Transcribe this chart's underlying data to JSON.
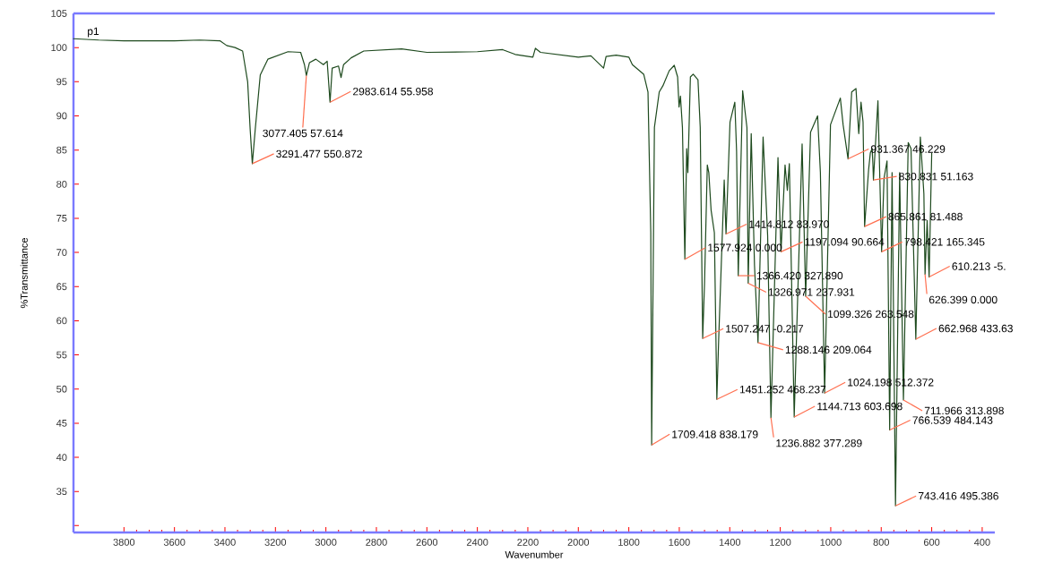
{
  "chart_data": {
    "type": "line",
    "title": "p1",
    "xlabel": "Wavenumber",
    "ylabel": "%Transmittance",
    "color": "#1e4a1e",
    "grid": false,
    "legend": false,
    "marker": "none",
    "line_style": "solid",
    "xlim": [
      4000,
      350
    ],
    "ylim": [
      29,
      105
    ],
    "xticks": [
      3800,
      3600,
      3400,
      3200,
      3000,
      2800,
      2600,
      2400,
      2200,
      2000,
      1800,
      1600,
      1400,
      1200,
      1000,
      800,
      600,
      400
    ],
    "yticks": [
      {
        "value": 30,
        "label": null
      },
      35,
      40,
      45,
      50,
      55,
      60,
      65,
      70,
      75,
      80,
      85,
      90,
      95,
      100,
      105
    ],
    "x": [
      4000,
      3900,
      3800,
      3700,
      3600,
      3500,
      3420,
      3393,
      3360,
      3330,
      3310,
      3300,
      3291.477,
      3280,
      3260,
      3230,
      3150,
      3100,
      3085,
      3077.405,
      3065,
      3040,
      3010,
      2995,
      2983.614,
      2975,
      2950,
      2940,
      2930,
      2900,
      2850,
      2700,
      2600,
      2400,
      2300,
      2250,
      2180,
      2170,
      2150,
      2000,
      1950,
      1900,
      1890,
      1850,
      1800,
      1785.9,
      1741,
      1724,
      1713,
      1709.418,
      1698.5,
      1679.4,
      1665,
      1640,
      1620,
      1606.6,
      1601,
      1595.4,
      1587.5,
      1584,
      1577.924,
      1570.7,
      1566,
      1556,
      1545,
      1526,
      1517,
      1507.247,
      1500,
      1489,
      1483,
      1474,
      1461,
      1451.252,
      1444,
      1422,
      1414.812,
      1399,
      1380,
      1373,
      1366.42,
      1349,
      1332,
      1326.971,
      1315,
      1302,
      1288.146,
      1268,
      1250,
      1236.882,
      1209,
      1197.094,
      1181,
      1172,
      1164,
      1144.713,
      1113.4,
      1099.326,
      1080,
      1052,
      1041,
      1024.198,
      1001,
      962,
      951,
      931.367,
      917,
      900,
      889,
      880,
      872,
      865.861,
      850,
      843,
      836,
      833,
      830.831,
      813,
      798.421,
      789,
      777,
      766.539,
      757,
      743.416,
      727,
      711.966,
      693,
      682,
      662.968,
      645,
      631,
      626.399,
      618,
      610.213,
      600
    ],
    "values": [
      101.3,
      101.1,
      101.0,
      101.0,
      101.0,
      101.1,
      101.0,
      100.3,
      100.0,
      99.5,
      95,
      88,
      83.0,
      88,
      96,
      98.3,
      99.4,
      99.3,
      97.5,
      95.9,
      97.8,
      98.3,
      97.5,
      98.0,
      92.0,
      97,
      97.3,
      95.6,
      97.5,
      98.5,
      99.5,
      99.8,
      99.3,
      99.4,
      99.7,
      99.0,
      98.6,
      99.9,
      99.3,
      98.6,
      98.8,
      97.0,
      98.7,
      98.9,
      98.6,
      97.5,
      96.1,
      93.5,
      73,
      41.8,
      88.3,
      93.5,
      94.4,
      96.6,
      97.4,
      95.7,
      91.3,
      92.9,
      88.3,
      81.2,
      69.0,
      85.2,
      81.7,
      95.7,
      96.1,
      95.3,
      88.3,
      57.4,
      65.5,
      82.8,
      81.7,
      76.2,
      72.9,
      48.5,
      57.2,
      80.6,
      72.7,
      89.1,
      92.0,
      84.8,
      66.6,
      93.7,
      88.3,
      65.5,
      87.4,
      68.1,
      56.8,
      86.9,
      72.5,
      45.8,
      83.9,
      70.1,
      82.8,
      79.1,
      83.0,
      45.9,
      85.9,
      63.6,
      87.6,
      90.0,
      81.7,
      49.4,
      88.7,
      92.6,
      88.7,
      83.7,
      93.5,
      94.0,
      87.4,
      92.0,
      89.1,
      73.8,
      82.1,
      84.6,
      85.2,
      83.0,
      80.6,
      92.2,
      70.1,
      80.8,
      83.4,
      44.0,
      81.7,
      32.9,
      81.7,
      48.4,
      86.1,
      85.2,
      57.3,
      86.9,
      78.6,
      66.8,
      74.7,
      66.4,
      84.5
    ],
    "annotations": [
      {
        "text": "3291.477 550.872",
        "x": 3291.477,
        "y": 83.0
      },
      {
        "text": "3077.405 57.614",
        "x": 3077.405,
        "y": 95.9
      },
      {
        "text": "2983.614 55.958",
        "x": 2983.614,
        "y": 92.0
      },
      {
        "text": "1709.418 838.179",
        "x": 1709.418,
        "y": 41.8
      },
      {
        "text": "1577.924 0.000",
        "x": 1577.924,
        "y": 69.0
      },
      {
        "text": "1507.247 -0.217",
        "x": 1507.247,
        "y": 57.4
      },
      {
        "text": "1451.252 468.237",
        "x": 1451.252,
        "y": 48.5
      },
      {
        "text": "1414.812 83.970",
        "x": 1414.812,
        "y": 72.7
      },
      {
        "text": "1366.420 327.890",
        "x": 1366.42,
        "y": 66.6
      },
      {
        "text": "1326.971 237.931",
        "x": 1326.971,
        "y": 65.5
      },
      {
        "text": "1288.146 209.064",
        "x": 1288.146,
        "y": 56.8
      },
      {
        "text": "1236.882 377.289",
        "x": 1236.882,
        "y": 45.8
      },
      {
        "text": "1197.094 90.664",
        "x": 1197.094,
        "y": 70.1
      },
      {
        "text": "1144.713 603.698",
        "x": 1144.713,
        "y": 45.9
      },
      {
        "text": "1099.326 263.548",
        "x": 1099.326,
        "y": 63.6
      },
      {
        "text": "1024.198 512.372",
        "x": 1024.198,
        "y": 49.4
      },
      {
        "text": "931.367 46.229",
        "x": 931.367,
        "y": 83.7
      },
      {
        "text": "865.861 81.488",
        "x": 865.861,
        "y": 73.8
      },
      {
        "text": "830.831 51.163",
        "x": 830.831,
        "y": 80.6
      },
      {
        "text": "798.421 165.345",
        "x": 798.421,
        "y": 70.1
      },
      {
        "text": "766.539 484.143",
        "x": 766.539,
        "y": 44.0
      },
      {
        "text": "743.416 495.386",
        "x": 743.416,
        "y": 32.9
      },
      {
        "text": "711.966 313.898",
        "x": 711.966,
        "y": 48.4
      },
      {
        "text": "662.968 433.63",
        "x": 662.968,
        "y": 57.3
      },
      {
        "text": "626.399 0.000",
        "x": 626.399,
        "y": 66.8
      },
      {
        "text": "610.213 -5.",
        "x": 610.213,
        "y": 66.4
      }
    ]
  }
}
